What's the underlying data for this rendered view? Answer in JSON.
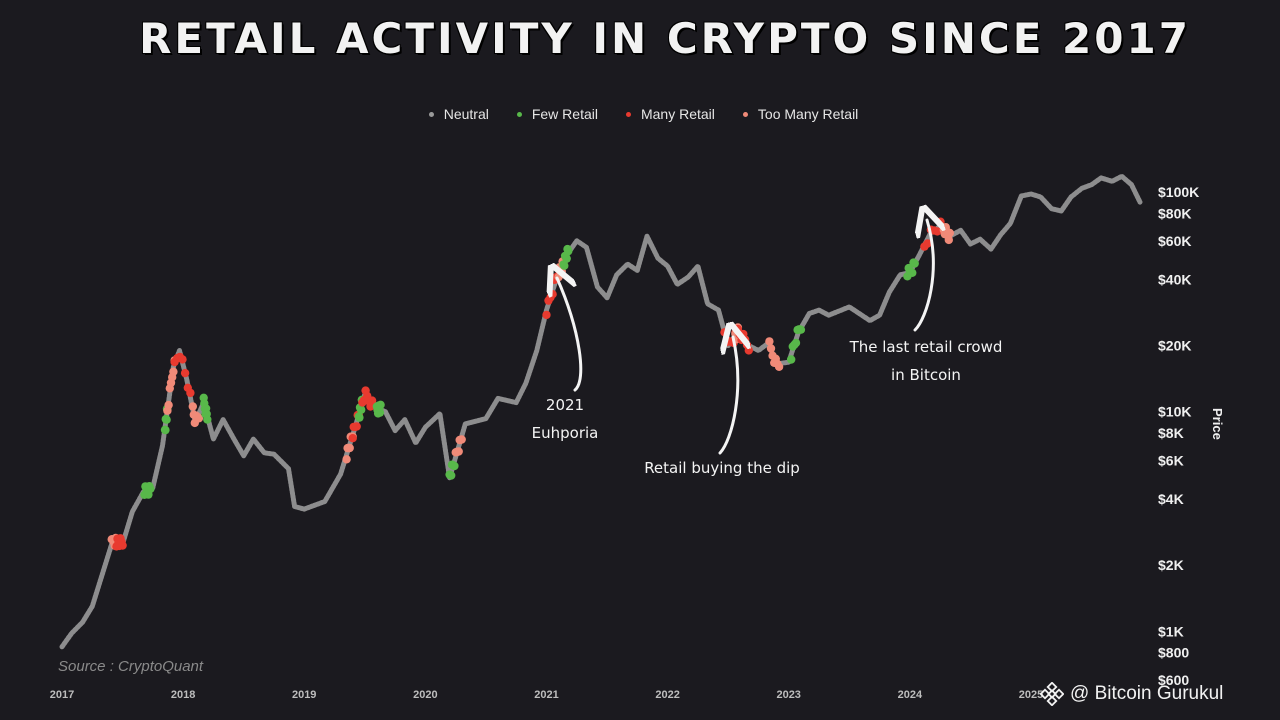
{
  "header": {
    "title": "Retail Activity in Crypto Since 2017"
  },
  "legend": [
    {
      "label": "Neutral",
      "color": "#9a9a9a"
    },
    {
      "label": "Few Retail",
      "color": "#58b84a"
    },
    {
      "label": "Many Retail",
      "color": "#e83a2f"
    },
    {
      "label": "Too Many Retail",
      "color": "#f08a78"
    }
  ],
  "source": "Source : CryptoQuant",
  "watermark": {
    "text": "@ Bitcoin Gurukul",
    "icon": "binance-icon"
  },
  "chart_data": {
    "type": "scatter",
    "title": "Retail Activity in Crypto Since 2017",
    "xlabel": "",
    "ylabel": "Price",
    "y_scale": "log",
    "ylim": [
      600,
      140000
    ],
    "xlim": [
      2017.0,
      2025.9
    ],
    "x_ticks": [
      "2017",
      "2018",
      "2019",
      "2020",
      "2021",
      "2022",
      "2023",
      "2024",
      "2025"
    ],
    "y_ticks": [
      {
        "value": 100000,
        "label": "$100K"
      },
      {
        "value": 80000,
        "label": "$80K"
      },
      {
        "value": 60000,
        "label": "$60K"
      },
      {
        "value": 40000,
        "label": "$40K"
      },
      {
        "value": 20000,
        "label": "$20K"
      },
      {
        "value": 10000,
        "label": "$10K"
      },
      {
        "value": 8000,
        "label": "$8K"
      },
      {
        "value": 6000,
        "label": "$6K"
      },
      {
        "value": 4000,
        "label": "$4K"
      },
      {
        "value": 2000,
        "label": "$2K"
      },
      {
        "value": 1000,
        "label": "$1K"
      },
      {
        "value": 800,
        "label": "$800"
      },
      {
        "value": 600,
        "label": "$600"
      }
    ],
    "legend_position": "top-center",
    "grid": false,
    "series": [
      {
        "name": "Neutral",
        "color": "#9a9a9a"
      },
      {
        "name": "Few Retail",
        "color": "#58b84a"
      },
      {
        "name": "Many Retail",
        "color": "#e83a2f"
      },
      {
        "name": "Too Many Retail",
        "color": "#f08a78"
      }
    ],
    "price_path": [
      [
        2017.0,
        850
      ],
      [
        2017.08,
        980
      ],
      [
        2017.17,
        1100
      ],
      [
        2017.25,
        1300
      ],
      [
        2017.33,
        1800
      ],
      [
        2017.42,
        2600
      ],
      [
        2017.5,
        2500
      ],
      [
        2017.58,
        3500
      ],
      [
        2017.67,
        4300
      ],
      [
        2017.75,
        4500
      ],
      [
        2017.83,
        7000
      ],
      [
        2017.92,
        16000
      ],
      [
        2017.97,
        19000
      ],
      [
        2018.03,
        14000
      ],
      [
        2018.1,
        9000
      ],
      [
        2018.17,
        11000
      ],
      [
        2018.25,
        7500
      ],
      [
        2018.33,
        9200
      ],
      [
        2018.42,
        7500
      ],
      [
        2018.5,
        6300
      ],
      [
        2018.58,
        7500
      ],
      [
        2018.67,
        6500
      ],
      [
        2018.75,
        6400
      ],
      [
        2018.87,
        5500
      ],
      [
        2018.92,
        3700
      ],
      [
        2019.0,
        3600
      ],
      [
        2019.17,
        3900
      ],
      [
        2019.3,
        5200
      ],
      [
        2019.42,
        8500
      ],
      [
        2019.5,
        12000
      ],
      [
        2019.58,
        10500
      ],
      [
        2019.67,
        10000
      ],
      [
        2019.75,
        8200
      ],
      [
        2019.83,
        9200
      ],
      [
        2019.92,
        7200
      ],
      [
        2020.0,
        8500
      ],
      [
        2020.12,
        9800
      ],
      [
        2020.2,
        5000
      ],
      [
        2020.33,
        8800
      ],
      [
        2020.5,
        9300
      ],
      [
        2020.6,
        11500
      ],
      [
        2020.75,
        11000
      ],
      [
        2020.83,
        13500
      ],
      [
        2020.92,
        19000
      ],
      [
        2021.0,
        29000
      ],
      [
        2021.08,
        40000
      ],
      [
        2021.17,
        52000
      ],
      [
        2021.25,
        60000
      ],
      [
        2021.33,
        56000
      ],
      [
        2021.42,
        37000
      ],
      [
        2021.5,
        33000
      ],
      [
        2021.58,
        42000
      ],
      [
        2021.67,
        47000
      ],
      [
        2021.75,
        44000
      ],
      [
        2021.83,
        63000
      ],
      [
        2021.92,
        50000
      ],
      [
        2022.0,
        46000
      ],
      [
        2022.08,
        38000
      ],
      [
        2022.17,
        41000
      ],
      [
        2022.25,
        46000
      ],
      [
        2022.33,
        31000
      ],
      [
        2022.42,
        29000
      ],
      [
        2022.5,
        20000
      ],
      [
        2022.58,
        23000
      ],
      [
        2022.67,
        20000
      ],
      [
        2022.75,
        19000
      ],
      [
        2022.83,
        20500
      ],
      [
        2022.9,
        16500
      ],
      [
        2023.0,
        16800
      ],
      [
        2023.08,
        23000
      ],
      [
        2023.17,
        28000
      ],
      [
        2023.25,
        29000
      ],
      [
        2023.33,
        27500
      ],
      [
        2023.5,
        30000
      ],
      [
        2023.67,
        26000
      ],
      [
        2023.75,
        27500
      ],
      [
        2023.83,
        35000
      ],
      [
        2023.92,
        42000
      ],
      [
        2024.0,
        43000
      ],
      [
        2024.08,
        52000
      ],
      [
        2024.17,
        65000
      ],
      [
        2024.25,
        70000
      ],
      [
        2024.33,
        63000
      ],
      [
        2024.42,
        67000
      ],
      [
        2024.5,
        58000
      ],
      [
        2024.58,
        61000
      ],
      [
        2024.67,
        55000
      ],
      [
        2024.75,
        64000
      ],
      [
        2024.83,
        72000
      ],
      [
        2024.92,
        96000
      ],
      [
        2025.0,
        98000
      ],
      [
        2025.08,
        95000
      ],
      [
        2025.17,
        84000
      ],
      [
        2025.25,
        82000
      ],
      [
        2025.33,
        95000
      ],
      [
        2025.42,
        104000
      ],
      [
        2025.5,
        108000
      ],
      [
        2025.58,
        116000
      ],
      [
        2025.67,
        112000
      ],
      [
        2025.75,
        118000
      ],
      [
        2025.83,
        108000
      ],
      [
        2025.9,
        90000
      ]
    ],
    "highlights": [
      {
        "series": "Too Many Retail",
        "x_start": 2017.41,
        "x_end": 2017.46
      },
      {
        "series": "Many Retail",
        "x_start": 2017.45,
        "x_end": 2017.5
      },
      {
        "series": "Few Retail",
        "x_start": 2017.68,
        "x_end": 2017.73
      },
      {
        "series": "Few Retail",
        "x_start": 2017.85,
        "x_end": 2017.87
      },
      {
        "series": "Too Many Retail",
        "x_start": 2017.87,
        "x_end": 2017.93
      },
      {
        "series": "Many Retail",
        "x_start": 2017.93,
        "x_end": 2018.06
      },
      {
        "series": "Too Many Retail",
        "x_start": 2018.08,
        "x_end": 2018.13
      },
      {
        "series": "Few Retail",
        "x_start": 2018.17,
        "x_end": 2018.2
      },
      {
        "series": "Too Many Retail",
        "x_start": 2019.35,
        "x_end": 2019.4
      },
      {
        "series": "Many Retail",
        "x_start": 2019.4,
        "x_end": 2019.45
      },
      {
        "series": "Few Retail",
        "x_start": 2019.45,
        "x_end": 2019.48
      },
      {
        "series": "Many Retail",
        "x_start": 2019.48,
        "x_end": 2019.56
      },
      {
        "series": "Few Retail",
        "x_start": 2019.6,
        "x_end": 2019.63
      },
      {
        "series": "Few Retail",
        "x_start": 2020.2,
        "x_end": 2020.24
      },
      {
        "series": "Too Many Retail",
        "x_start": 2020.25,
        "x_end": 2020.3
      },
      {
        "series": "Many Retail",
        "x_start": 2021.0,
        "x_end": 2021.1
      },
      {
        "series": "Too Many Retail",
        "x_start": 2021.1,
        "x_end": 2021.14
      },
      {
        "series": "Few Retail",
        "x_start": 2021.14,
        "x_end": 2021.18
      },
      {
        "series": "Many Retail",
        "x_start": 2022.47,
        "x_end": 2022.56
      },
      {
        "series": "Too Many Retail",
        "x_start": 2022.56,
        "x_end": 2022.58
      },
      {
        "series": "Many Retail",
        "x_start": 2022.58,
        "x_end": 2022.67
      },
      {
        "series": "Too Many Retail",
        "x_start": 2022.84,
        "x_end": 2022.92
      },
      {
        "series": "Few Retail",
        "x_start": 2023.02,
        "x_end": 2023.1
      },
      {
        "series": "Few Retail",
        "x_start": 2023.98,
        "x_end": 2024.04
      },
      {
        "series": "Many Retail",
        "x_start": 2024.12,
        "x_end": 2024.28
      },
      {
        "series": "Too Many Retail",
        "x_start": 2024.28,
        "x_end": 2024.33
      }
    ],
    "annotations": [
      {
        "lines": [
          "2021",
          "Euhporia"
        ],
        "target_x": 2021.1,
        "target_y": 30000
      },
      {
        "lines": [
          "Retail buying the dip"
        ],
        "target_x": 2022.6,
        "target_y": 18000
      },
      {
        "lines": [
          "The last retail crowd",
          "in Bitcoin"
        ],
        "target_x": 2024.3,
        "target_y": 60000
      }
    ]
  }
}
